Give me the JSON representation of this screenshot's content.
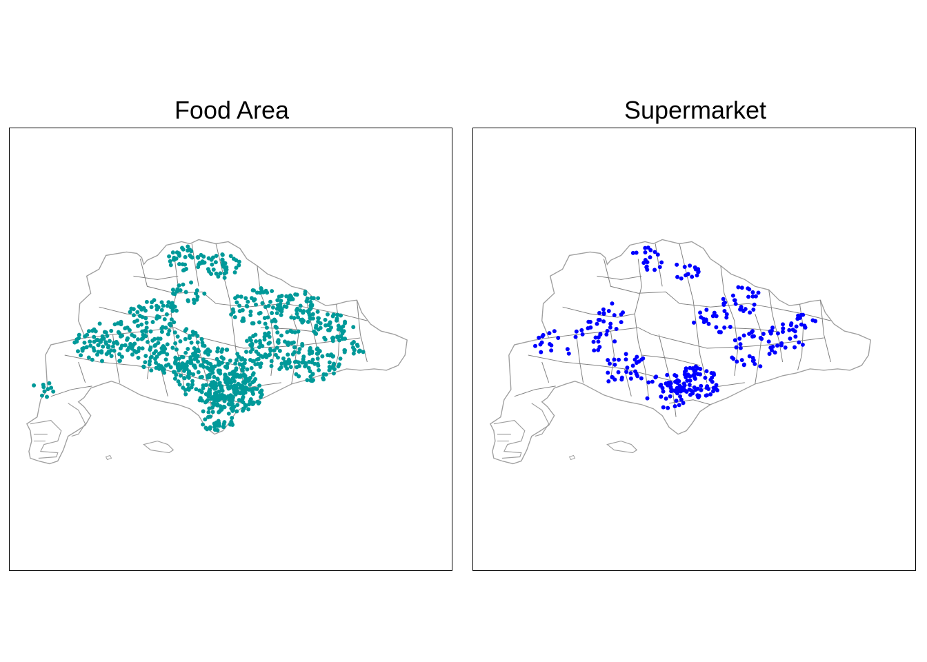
{
  "panels": [
    {
      "id": "food",
      "title": "Food Area",
      "point_color": "#009999",
      "point_count_note": "",
      "layer": "points"
    },
    {
      "id": "supermarket",
      "title": "Supermarket",
      "point_color": "#0000ff",
      "point_count_note": "",
      "layer": "points"
    }
  ],
  "map": {
    "boundary_color": "#a0a0a0",
    "subzone_color": "#808080"
  }
}
